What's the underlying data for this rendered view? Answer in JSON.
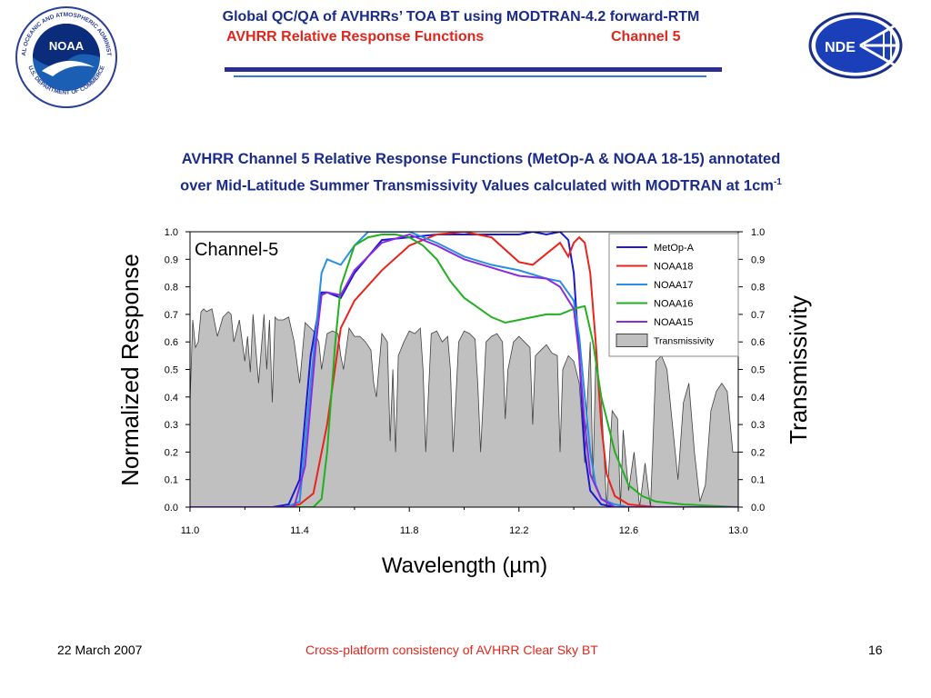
{
  "header": {
    "title": "Global QC/QA of AVHRRs’ TOA BT using MODTRAN-4.2 forward-RTM",
    "subtitle": "AVHRR Relative Response Functions",
    "channel": "Channel 5",
    "logo_left": {
      "text": "NOAA",
      "ring_top": "NATIONAL OCEANIC AND ATMOSPHERIC ADMINISTRATION",
      "ring_bottom": "U.S. DEPARTMENT OF COMMERCE"
    },
    "logo_right": {
      "text": "NDE"
    }
  },
  "chart_title": {
    "line1": "AVHRR Channel 5 Relative Response Functions (MetOp-A & NOAA 18-15) annotated",
    "line2": "over Mid-Latitude Summer Transmissivity Values calculated with MODTRAN at 1cm",
    "superscript": "-1"
  },
  "footer": {
    "date": "22 March 2007",
    "center": "Cross-platform consistency of AVHRR Clear Sky BT",
    "page": "16"
  },
  "chart_data": {
    "type": "line",
    "annotation": "Channel-5",
    "xlabel": "Wavelength (µm)",
    "ylabel": "Normalized Response",
    "y2label": "Transmissivity",
    "xlim": [
      11.0,
      13.0
    ],
    "ylim": [
      0.0,
      1.0
    ],
    "y2lim": [
      0.0,
      1.0
    ],
    "xticks": [
      "11.0",
      "11.4",
      "11.8",
      "12.2",
      "12.6",
      "13.0"
    ],
    "xtick_values": [
      11.0,
      11.4,
      11.8,
      12.2,
      12.6,
      13.0
    ],
    "yticks": [
      "0.0",
      "0.1",
      "0.2",
      "0.3",
      "0.4",
      "0.5",
      "0.6",
      "0.7",
      "0.8",
      "0.9",
      "1.0"
    ],
    "ytick_values": [
      0.0,
      0.1,
      0.2,
      0.3,
      0.4,
      0.5,
      0.6,
      0.7,
      0.8,
      0.9,
      1.0
    ],
    "legend_position": "top-right",
    "grid": false,
    "series": [
      {
        "name": "MetOp-A",
        "color": "#1a1ad0",
        "x": [
          11.0,
          11.3,
          11.36,
          11.4,
          11.44,
          11.48,
          11.5,
          11.55,
          11.6,
          11.7,
          11.8,
          11.9,
          12.0,
          12.1,
          12.2,
          12.25,
          12.3,
          12.35,
          12.38,
          12.4,
          12.42,
          12.44,
          12.46,
          12.5,
          12.55,
          12.6,
          13.0
        ],
        "y": [
          0.0,
          0.0,
          0.01,
          0.1,
          0.55,
          0.78,
          0.78,
          0.76,
          0.85,
          0.97,
          0.98,
          0.99,
          0.99,
          0.99,
          0.99,
          1.0,
          0.99,
          1.0,
          0.97,
          0.85,
          0.55,
          0.2,
          0.06,
          0.01,
          0.0,
          0.0,
          0.0
        ]
      },
      {
        "name": "NOAA18",
        "color": "#e8241c",
        "x": [
          11.0,
          11.35,
          11.4,
          11.45,
          11.5,
          11.55,
          11.6,
          11.7,
          11.8,
          11.9,
          12.0,
          12.1,
          12.2,
          12.25,
          12.3,
          12.35,
          12.38,
          12.4,
          12.42,
          12.44,
          12.46,
          12.48,
          12.5,
          12.52,
          12.55,
          12.6,
          12.7,
          13.0
        ],
        "y": [
          0.0,
          0.0,
          0.01,
          0.05,
          0.3,
          0.65,
          0.75,
          0.86,
          0.95,
          0.99,
          1.0,
          0.98,
          0.89,
          0.88,
          0.92,
          0.96,
          0.91,
          0.96,
          0.98,
          0.96,
          0.85,
          0.6,
          0.3,
          0.12,
          0.04,
          0.01,
          0.0,
          0.0
        ]
      },
      {
        "name": "NOAA17",
        "color": "#2a8ee0",
        "x": [
          11.0,
          11.35,
          11.4,
          11.44,
          11.48,
          11.5,
          11.55,
          11.6,
          11.65,
          11.7,
          11.8,
          11.9,
          12.0,
          12.1,
          12.2,
          12.3,
          12.35,
          12.4,
          12.42,
          12.44,
          12.46,
          12.48,
          12.5,
          12.55,
          12.6,
          13.0
        ],
        "y": [
          0.0,
          0.0,
          0.02,
          0.45,
          0.85,
          0.9,
          0.88,
          0.95,
          1.0,
          1.0,
          1.0,
          0.96,
          0.91,
          0.88,
          0.86,
          0.83,
          0.82,
          0.75,
          0.62,
          0.4,
          0.2,
          0.08,
          0.03,
          0.01,
          0.0,
          0.0
        ]
      },
      {
        "name": "NOAA16",
        "color": "#22b021",
        "x": [
          11.0,
          11.45,
          11.48,
          11.5,
          11.53,
          11.55,
          11.6,
          11.65,
          11.7,
          11.75,
          11.8,
          11.85,
          11.9,
          11.95,
          12.0,
          12.1,
          12.15,
          12.2,
          12.25,
          12.3,
          12.35,
          12.4,
          12.44,
          12.47,
          12.5,
          12.55,
          12.6,
          12.65,
          12.7,
          12.8,
          13.0
        ],
        "y": [
          0.0,
          0.0,
          0.03,
          0.2,
          0.6,
          0.8,
          0.95,
          0.98,
          0.99,
          0.99,
          0.98,
          0.95,
          0.9,
          0.82,
          0.76,
          0.69,
          0.67,
          0.68,
          0.69,
          0.7,
          0.7,
          0.72,
          0.73,
          0.6,
          0.4,
          0.2,
          0.08,
          0.04,
          0.02,
          0.01,
          0.0
        ]
      },
      {
        "name": "NOAA15",
        "color": "#8a2be2",
        "x": [
          11.0,
          11.38,
          11.42,
          11.46,
          11.48,
          11.5,
          11.55,
          11.6,
          11.7,
          11.8,
          11.9,
          12.0,
          12.1,
          12.2,
          12.3,
          12.35,
          12.4,
          12.42,
          12.44,
          12.46,
          12.5,
          12.55,
          12.6,
          13.0
        ],
        "y": [
          0.0,
          0.0,
          0.15,
          0.6,
          0.77,
          0.78,
          0.77,
          0.86,
          0.96,
          0.99,
          0.95,
          0.9,
          0.87,
          0.84,
          0.83,
          0.8,
          0.72,
          0.55,
          0.3,
          0.12,
          0.03,
          0.0,
          0.0,
          0.0
        ]
      }
    ],
    "transmissivity": {
      "name": "Transmissivity",
      "color": "#c0c0c0",
      "edge": "#404040",
      "x": [
        11.0,
        11.01,
        11.02,
        11.03,
        11.04,
        11.05,
        11.06,
        11.08,
        11.1,
        11.12,
        11.14,
        11.15,
        11.16,
        11.18,
        11.2,
        11.21,
        11.22,
        11.23,
        11.25,
        11.27,
        11.28,
        11.29,
        11.3,
        11.31,
        11.32,
        11.34,
        11.36,
        11.38,
        11.4,
        11.42,
        11.44,
        11.45,
        11.46,
        11.47,
        11.48,
        11.5,
        11.52,
        11.54,
        11.55,
        11.56,
        11.58,
        11.6,
        11.62,
        11.64,
        11.66,
        11.67,
        11.68,
        11.7,
        11.72,
        11.73,
        11.74,
        11.75,
        11.76,
        11.78,
        11.8,
        11.82,
        11.84,
        11.85,
        11.86,
        11.88,
        11.9,
        11.92,
        11.94,
        11.95,
        11.96,
        11.98,
        12.0,
        12.02,
        12.04,
        12.05,
        12.06,
        12.08,
        12.1,
        12.12,
        12.14,
        12.15,
        12.16,
        12.18,
        12.2,
        12.22,
        12.24,
        12.25,
        12.26,
        12.28,
        12.3,
        12.32,
        12.34,
        12.35,
        12.36,
        12.38,
        12.4,
        12.42,
        12.44,
        12.45,
        12.46,
        12.47,
        12.48,
        12.5,
        12.52,
        12.54,
        12.56,
        12.57,
        12.58,
        12.6,
        12.62,
        12.64,
        12.66,
        12.68,
        12.7,
        12.72,
        12.74,
        12.76,
        12.78,
        12.8,
        12.82,
        12.84,
        12.86,
        12.88,
        12.9,
        12.92,
        12.94,
        12.96,
        12.98,
        13.0
      ],
      "y": [
        0.38,
        0.68,
        0.58,
        0.6,
        0.71,
        0.72,
        0.71,
        0.72,
        0.62,
        0.69,
        0.71,
        0.7,
        0.6,
        0.68,
        0.53,
        0.62,
        0.49,
        0.7,
        0.45,
        0.7,
        0.5,
        0.68,
        0.38,
        0.69,
        0.68,
        0.68,
        0.69,
        0.6,
        0.45,
        0.67,
        0.65,
        0.64,
        0.62,
        0.6,
        0.5,
        0.63,
        0.64,
        0.63,
        0.55,
        0.5,
        0.65,
        0.62,
        0.62,
        0.6,
        0.57,
        0.45,
        0.4,
        0.63,
        0.6,
        0.24,
        0.5,
        0.2,
        0.55,
        0.6,
        0.64,
        0.63,
        0.65,
        0.5,
        0.2,
        0.63,
        0.64,
        0.6,
        0.62,
        0.5,
        0.2,
        0.6,
        0.64,
        0.63,
        0.61,
        0.44,
        0.2,
        0.6,
        0.62,
        0.63,
        0.6,
        0.32,
        0.5,
        0.6,
        0.62,
        0.6,
        0.58,
        0.3,
        0.55,
        0.57,
        0.59,
        0.56,
        0.55,
        0.2,
        0.5,
        0.55,
        0.53,
        0.45,
        0.16,
        0.4,
        0.6,
        0.1,
        0.52,
        0.4,
        0.0,
        0.35,
        0.32,
        0.0,
        0.28,
        0.06,
        0.2,
        0.0,
        0.16,
        0.0,
        0.53,
        0.55,
        0.5,
        0.3,
        0.1,
        0.38,
        0.45,
        0.2,
        0.02,
        0.08,
        0.35,
        0.42,
        0.45,
        0.42,
        0.2,
        0.2
      ]
    }
  }
}
